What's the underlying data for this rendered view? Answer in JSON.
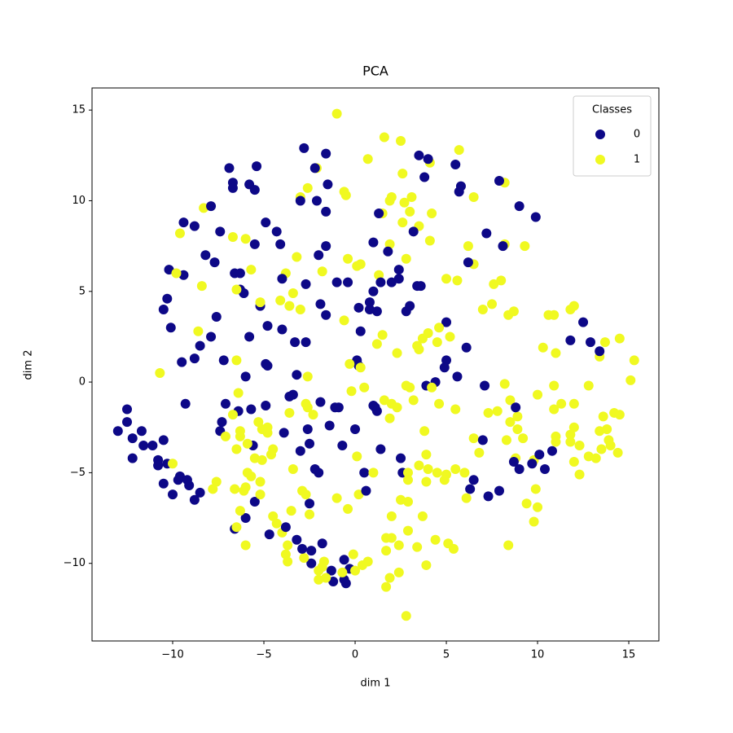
{
  "chart_data": {
    "type": "scatter",
    "title": "PCA",
    "x_label": "dim 1",
    "y_label": "dim 2",
    "xlim": [
      -14.42,
      16.65
    ],
    "ylim": [
      -14.28,
      16.22
    ],
    "xticks": [
      {
        "value": -10,
        "label": "−10"
      },
      {
        "value": -5,
        "label": "−5"
      },
      0,
      5,
      10,
      15
    ],
    "yticks": [
      {
        "value": -10,
        "label": "−10"
      },
      {
        "value": -5,
        "label": "−5"
      },
      0,
      5,
      10,
      15
    ],
    "legend": {
      "title": "Classes",
      "loc": "upper right"
    },
    "series": [
      {
        "name": "0",
        "color": "#0d0887",
        "x": [
          -13,
          -12.5,
          -12.5,
          -12.2,
          -12.2,
          -11.7,
          -11.6,
          -10.8,
          -10.8,
          -10.5,
          -10,
          -9.6,
          -9.2,
          -8.8,
          -10.5,
          -10.5,
          -10.3,
          -10.2,
          -10.1,
          -9.5,
          -9.4,
          -9.3,
          -9.4,
          -8.8,
          -8.5,
          -8.2,
          -7.9,
          -7.7,
          -7.6,
          -7.4,
          -7.2,
          -7.1,
          -7.3,
          -7.4,
          -6.9,
          -6.7,
          -6.7,
          -6.6,
          -6.3,
          -6.3,
          -6.1,
          -6,
          -5.8,
          -5.8,
          -5.7,
          -5.6,
          -5.4,
          -5.5,
          -5.5,
          -5.2,
          -4.9,
          -4.8,
          -4.9,
          -4.8,
          -4.9,
          -4.7,
          -4.3,
          -4.1,
          -4,
          -4,
          -3.9,
          -3.6,
          -3.4,
          -3.3,
          -3.2,
          -3.2,
          -3,
          -2.8,
          -2.7,
          -2.7,
          -2.6,
          -2.5,
          -2.5,
          -2.4,
          -2.4,
          -2.2,
          -2.1,
          -2,
          -1.9,
          -1.9,
          -1.8,
          -1.6,
          -1.5,
          -1.6,
          -1.6,
          -1.6,
          -1.4,
          -1.3,
          -1.2,
          -0.9,
          -0.7,
          -0.6,
          -0.5,
          -0.4,
          -0.3,
          0.1,
          0.2,
          0.3,
          0.5,
          0.8,
          1,
          1,
          1.1,
          1.2,
          1.3,
          1.4,
          1.4,
          1.8,
          2,
          2.4,
          2.5,
          2.6,
          2.8,
          3,
          3.2,
          3.4,
          3.5,
          3.8,
          4,
          3.9,
          4.4,
          5,
          5,
          5.5,
          5.6,
          5.7,
          5.8,
          6.1,
          6.2,
          6.3,
          6.5,
          7,
          7.2,
          7.1,
          7.3,
          7.9,
          7.9,
          8.1,
          8.8,
          8.7,
          9,
          9,
          9.7,
          9.9,
          10.1,
          10.4,
          10.8,
          11.8,
          12.5,
          12.9,
          13.4,
          -10.3,
          -9.7,
          -6.6,
          -6,
          -5.5,
          -3.8,
          -0.6,
          -2.9,
          -1.1,
          -3,
          -2.2,
          -2,
          0,
          1,
          4.9,
          -6.4,
          -1,
          0.6,
          0.2,
          0.8,
          3.6,
          2.4,
          1.2,
          -7.9,
          -8.8,
          -9.1,
          -8.5,
          -11.1
        ],
        "values": [
          -2.7,
          -1.5,
          -2.2,
          -3.1,
          -4.2,
          -2.7,
          -3.5,
          -4.3,
          -4.6,
          -5.6,
          -6.2,
          -5.2,
          -5.4,
          -6.5,
          -3.2,
          4,
          4.6,
          6.2,
          3,
          1.1,
          5.9,
          -1.2,
          8.8,
          8.6,
          2,
          7,
          9.7,
          6.6,
          3.6,
          8.3,
          1.2,
          -1.2,
          -2.2,
          -2.7,
          11.8,
          11,
          10.7,
          6,
          6,
          5.1,
          4.9,
          0.3,
          2.5,
          10.9,
          -1.5,
          -3.5,
          11.9,
          10.6,
          7.6,
          4.2,
          8.8,
          3.1,
          1,
          0.9,
          -1.3,
          -8.4,
          8.3,
          7.6,
          5.7,
          2.9,
          -2.8,
          -0.8,
          -0.7,
          2.2,
          0.4,
          -8.7,
          10,
          12.9,
          5.4,
          2.2,
          -2.6,
          -3.4,
          -6.7,
          -9.3,
          -10,
          11.8,
          10,
          7,
          4.3,
          -1.1,
          -8.9,
          12.6,
          10.9,
          9.4,
          7.5,
          3.7,
          -2.4,
          -10.4,
          -11,
          -1.4,
          -3.5,
          -10.9,
          -11.1,
          5.5,
          -10.3,
          1.2,
          4.1,
          2.8,
          -5,
          4.4,
          7.7,
          5,
          -1.4,
          3.9,
          9.3,
          -3.7,
          5.5,
          7.2,
          5.5,
          5.7,
          -4.2,
          -5,
          3.9,
          4.2,
          8.3,
          5.3,
          12.5,
          11.3,
          12.3,
          -0.2,
          0,
          3.3,
          1.2,
          12,
          0.3,
          10.5,
          10.8,
          1.9,
          6.6,
          -5.9,
          -5.4,
          -3.2,
          8.2,
          -0.2,
          -6.3,
          -6,
          11.1,
          7.5,
          -1.4,
          -4.4,
          -4.8,
          9.7,
          -4.5,
          9.1,
          -4,
          -4.8,
          -3.8,
          2.3,
          3.3,
          2.2,
          1.7,
          -4.5,
          -5.4,
          -8.1,
          -7.5,
          -6.6,
          -8,
          -9.8,
          -9.2,
          -1.4,
          -3.8,
          -4.8,
          -5,
          -2.6,
          -1.3,
          0.8,
          -1.6,
          5.5,
          -6,
          0.9,
          4,
          5.3,
          6.2,
          -1.6,
          2.5,
          1.3,
          -5.7,
          -6.1,
          -3.5
        ]
      },
      {
        "name": "1",
        "color": "#f0f921",
        "x": [
          -1,
          1.6,
          2.5,
          0.7,
          5.7,
          4.1,
          2.6,
          -2.1,
          -2.6,
          -3,
          -0.6,
          -0.5,
          1.9,
          2,
          2.7,
          3.1,
          3,
          4.2,
          1.5,
          2.6,
          3.5,
          -8.3,
          -9.6,
          -6.7,
          -6,
          -5.7,
          -3.8,
          -3.2,
          -1.8,
          -0.4,
          0.1,
          0.3,
          1.3,
          1.9,
          2.8,
          4.1,
          6.2,
          6.5,
          8.2,
          8.2,
          9.3,
          6.5,
          7.6,
          8,
          5,
          5.6,
          7,
          7.5,
          8.4,
          8.7,
          10.6,
          10.9,
          11.8,
          12,
          13.7,
          14.5,
          10.3,
          11,
          13.4,
          15.3,
          15.1,
          12.8,
          10.9,
          10,
          8.2,
          9.8,
          10.9,
          11.3,
          12,
          12,
          11.8,
          11,
          11,
          11.8,
          12.3,
          12.8,
          12,
          12.3,
          13.4,
          13.8,
          14.2,
          14.5,
          13.6,
          13.9,
          14,
          13.5,
          14.4,
          13.2,
          8.5,
          8.9,
          8.5,
          8.9,
          9.2,
          8.8,
          8.3,
          7.8,
          7.3,
          6.8,
          6.5,
          9.4,
          9.9,
          9.8,
          10,
          8.4,
          6,
          5.5,
          5,
          4.5,
          4,
          3.5,
          3.9,
          2.9,
          2.5,
          2.9,
          2,
          3.7,
          2.9,
          1.7,
          2,
          1.7,
          2.4,
          3.4,
          4.4,
          5.1,
          5.4,
          2.4,
          1.9,
          1.7,
          2.8,
          3.9,
          6.1,
          1,
          0.2,
          0.1,
          -0.4,
          -1,
          -0.1,
          0,
          0.4,
          0.7,
          -0.7,
          -1.7,
          -1.8,
          -1.6,
          -2,
          -2,
          -2.8,
          -3.7,
          -3.8,
          -3.7,
          -4.3,
          -4,
          -4.5,
          -3.5,
          -2.9,
          -2.7,
          -2.5,
          -3.4,
          -4.6,
          -4.5,
          -4.8,
          -4.8,
          -5.1,
          -5.3,
          -5.9,
          -6.3,
          -6.5,
          -6.3,
          -7.1,
          -6.7,
          -5.5,
          -5.7,
          -5.2,
          -5.9,
          -6.1,
          -6,
          -6.6,
          -6.3,
          -6,
          -6.5,
          -5.2,
          -5.1,
          -7.6,
          -7.8,
          -10,
          -10.7,
          -9.8,
          -8.4,
          -8.6,
          -6.5,
          -6.5,
          -6.4,
          -5.2,
          -4.1,
          -3.6,
          -3,
          -3.4,
          -2.6,
          -2.7,
          -2.6,
          -2.3,
          -3.6,
          -0.6,
          -0.3,
          0.3,
          -0.2,
          0.5,
          1.2,
          1.5,
          1.6,
          2,
          2.3,
          2.3,
          2.8,
          3.2,
          3.4,
          3.7,
          4,
          4.2,
          4.5,
          4.6,
          4.6,
          5.2,
          5.5,
          3.8,
          3.9,
          3.5,
          3,
          1.9,
          2.9,
          4.9
        ],
        "values": [
          14.8,
          13.5,
          13.3,
          12.3,
          12.8,
          12.1,
          11.5,
          11.8,
          10.7,
          10.2,
          10.5,
          10.3,
          10,
          10.2,
          9.9,
          10.2,
          9.4,
          9.3,
          9.3,
          8.8,
          8.6,
          9.6,
          8.2,
          8,
          7.9,
          6.2,
          6,
          6.9,
          6.1,
          6.8,
          6.4,
          6.5,
          5.9,
          7.6,
          6.8,
          7.8,
          7.5,
          10.2,
          11,
          7.6,
          7.5,
          6.5,
          5.4,
          5.6,
          5.7,
          5.6,
          4,
          4.3,
          3.7,
          3.9,
          3.7,
          3.7,
          4,
          4.2,
          2.2,
          2.4,
          1.9,
          1.6,
          1.4,
          1.2,
          0.1,
          -0.2,
          -0.2,
          -0.7,
          -0.1,
          -4.3,
          -1.5,
          -1.2,
          -1.2,
          -2.5,
          -2.9,
          -3,
          -3.3,
          -3.3,
          -3.5,
          -4.1,
          -4.4,
          -5.1,
          -2.7,
          -2.6,
          -1.7,
          -1.8,
          -1.9,
          -3.2,
          -3.5,
          -3.7,
          -3.9,
          -4.2,
          -1,
          -1.9,
          -2.2,
          -2.6,
          -3.1,
          -4.2,
          -3.2,
          -1.6,
          -1.7,
          -3.9,
          -3.1,
          -6.7,
          -5.9,
          -7.7,
          -6.9,
          -9,
          -5,
          -4.8,
          -5.1,
          -5,
          -4.8,
          -4.6,
          -5.5,
          -5,
          -6.5,
          -6.6,
          -7.4,
          -7.4,
          -8.2,
          -8.6,
          -8.6,
          -9.3,
          -9,
          -9.1,
          -8.7,
          -8.9,
          -9.2,
          -10.5,
          -10.8,
          -11.3,
          -12.9,
          -10.1,
          -6.4,
          -5,
          -6.2,
          -4.1,
          -7,
          -6.4,
          -9.5,
          -10.4,
          -10.1,
          -9.9,
          -10.5,
          -9.9,
          -10.2,
          -10.8,
          -10.4,
          -10.9,
          -9.7,
          -9,
          -9.5,
          -9.9,
          -7.8,
          -8.3,
          -7.4,
          -7.1,
          -6,
          -6.2,
          -7.3,
          -4.8,
          -4,
          -3.7,
          -2.8,
          -2.5,
          -2.6,
          -2.2,
          -3.4,
          -3,
          -3.7,
          -2.7,
          -3,
          -1.8,
          -4.2,
          -5.2,
          -5.5,
          -5,
          -6,
          -5.8,
          -5.9,
          -7.1,
          -9,
          -8,
          -6.2,
          -4.3,
          -5.5,
          -5.9,
          -4.5,
          0.5,
          6,
          5.3,
          2.8,
          5.1,
          1.2,
          -0.6,
          4.4,
          4.5,
          4.2,
          4,
          4.9,
          -1.4,
          -1.2,
          0.3,
          -1.8,
          -1.7,
          3.4,
          1,
          0.8,
          -0.5,
          -0.3,
          2.1,
          2.6,
          -1,
          -1.2,
          -1.4,
          1.6,
          -0.2,
          -1,
          2,
          2.4,
          2.7,
          -0.3,
          2.2,
          3,
          -1.2,
          2.5,
          -1.5,
          -2.7,
          -4,
          1.8,
          -0.3,
          -2,
          -5.4,
          -5.4
        ]
      }
    ]
  }
}
